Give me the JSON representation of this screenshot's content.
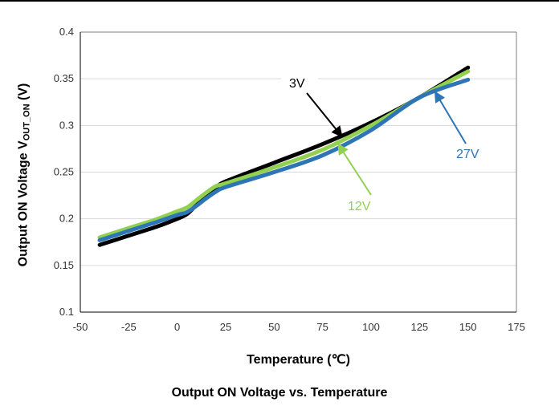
{
  "chart_data": {
    "type": "line",
    "title": "Output ON Voltage vs. Temperature",
    "xlabel": "Temperature (℃)",
    "ylabel": {
      "prefix": "Output ON Voltage V",
      "sub": "OUT_ON",
      "suffix": " (V)"
    },
    "xlim": [
      -50,
      175
    ],
    "ylim": [
      0.1,
      0.4
    ],
    "xticks": [
      "-50",
      "-25",
      "0",
      "25",
      "50",
      "75",
      "100",
      "125",
      "150",
      "175"
    ],
    "yticks": [
      "0.1",
      "0.15",
      "0.2",
      "0.25",
      "0.3",
      "0.35",
      "0.4"
    ],
    "grid": "horizontal",
    "series": [
      {
        "name": "3V",
        "color": "#000000",
        "x": [
          -40,
          -25,
          -10,
          0,
          5,
          10,
          15,
          20,
          25,
          50,
          75,
          100,
          125,
          150
        ],
        "y": [
          0.172,
          0.182,
          0.192,
          0.2,
          0.205,
          0.215,
          0.225,
          0.233,
          0.24,
          0.26,
          0.28,
          0.303,
          0.33,
          0.362
        ]
      },
      {
        "name": "12V",
        "color": "#92d050",
        "x": [
          -40,
          -25,
          -10,
          0,
          5,
          10,
          15,
          20,
          25,
          50,
          75,
          100,
          125,
          150
        ],
        "y": [
          0.18,
          0.19,
          0.2,
          0.208,
          0.212,
          0.22,
          0.228,
          0.235,
          0.238,
          0.255,
          0.274,
          0.3,
          0.33,
          0.358
        ]
      },
      {
        "name": "27V",
        "color": "#2e75b6",
        "x": [
          -40,
          -25,
          -10,
          0,
          5,
          10,
          15,
          20,
          25,
          50,
          75,
          100,
          125,
          150
        ],
        "y": [
          0.177,
          0.187,
          0.197,
          0.204,
          0.207,
          0.214,
          0.222,
          0.229,
          0.234,
          0.25,
          0.268,
          0.295,
          0.33,
          0.349
        ]
      }
    ],
    "annotations": [
      {
        "text": "3V",
        "series": "3V",
        "color": "#000000",
        "point": [
          85,
          0.288
        ]
      },
      {
        "text": "12V",
        "series": "12V",
        "color": "#92d050",
        "point": [
          83,
          0.28
        ]
      },
      {
        "text": "27V",
        "series": "27V",
        "color": "#2e75b6",
        "point": [
          133,
          0.336
        ]
      }
    ]
  }
}
